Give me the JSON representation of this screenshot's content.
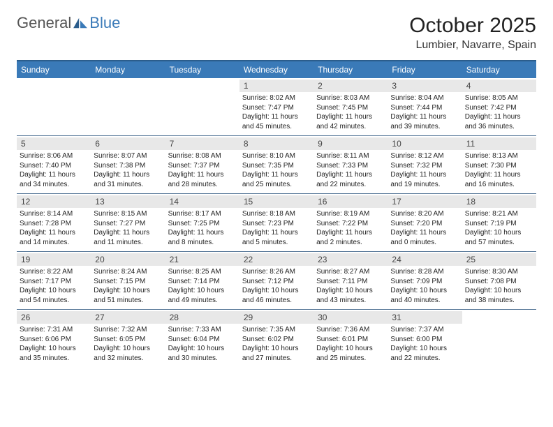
{
  "logo": {
    "text1": "General",
    "text2": "Blue"
  },
  "title": "October 2025",
  "location": "Lumbier, Navarre, Spain",
  "header_bg": "#3a7ab8",
  "border_color": "#2b5d8c",
  "daynum_bg": "#e8e8e8",
  "dow": [
    "Sunday",
    "Monday",
    "Tuesday",
    "Wednesday",
    "Thursday",
    "Friday",
    "Saturday"
  ],
  "weeks": [
    [
      {
        "n": "",
        "sr": "",
        "ss": "",
        "d1": "",
        "d2": ""
      },
      {
        "n": "",
        "sr": "",
        "ss": "",
        "d1": "",
        "d2": ""
      },
      {
        "n": "",
        "sr": "",
        "ss": "",
        "d1": "",
        "d2": ""
      },
      {
        "n": "1",
        "sr": "Sunrise: 8:02 AM",
        "ss": "Sunset: 7:47 PM",
        "d1": "Daylight: 11 hours",
        "d2": "and 45 minutes."
      },
      {
        "n": "2",
        "sr": "Sunrise: 8:03 AM",
        "ss": "Sunset: 7:45 PM",
        "d1": "Daylight: 11 hours",
        "d2": "and 42 minutes."
      },
      {
        "n": "3",
        "sr": "Sunrise: 8:04 AM",
        "ss": "Sunset: 7:44 PM",
        "d1": "Daylight: 11 hours",
        "d2": "and 39 minutes."
      },
      {
        "n": "4",
        "sr": "Sunrise: 8:05 AM",
        "ss": "Sunset: 7:42 PM",
        "d1": "Daylight: 11 hours",
        "d2": "and 36 minutes."
      }
    ],
    [
      {
        "n": "5",
        "sr": "Sunrise: 8:06 AM",
        "ss": "Sunset: 7:40 PM",
        "d1": "Daylight: 11 hours",
        "d2": "and 34 minutes."
      },
      {
        "n": "6",
        "sr": "Sunrise: 8:07 AM",
        "ss": "Sunset: 7:38 PM",
        "d1": "Daylight: 11 hours",
        "d2": "and 31 minutes."
      },
      {
        "n": "7",
        "sr": "Sunrise: 8:08 AM",
        "ss": "Sunset: 7:37 PM",
        "d1": "Daylight: 11 hours",
        "d2": "and 28 minutes."
      },
      {
        "n": "8",
        "sr": "Sunrise: 8:10 AM",
        "ss": "Sunset: 7:35 PM",
        "d1": "Daylight: 11 hours",
        "d2": "and 25 minutes."
      },
      {
        "n": "9",
        "sr": "Sunrise: 8:11 AM",
        "ss": "Sunset: 7:33 PM",
        "d1": "Daylight: 11 hours",
        "d2": "and 22 minutes."
      },
      {
        "n": "10",
        "sr": "Sunrise: 8:12 AM",
        "ss": "Sunset: 7:32 PM",
        "d1": "Daylight: 11 hours",
        "d2": "and 19 minutes."
      },
      {
        "n": "11",
        "sr": "Sunrise: 8:13 AM",
        "ss": "Sunset: 7:30 PM",
        "d1": "Daylight: 11 hours",
        "d2": "and 16 minutes."
      }
    ],
    [
      {
        "n": "12",
        "sr": "Sunrise: 8:14 AM",
        "ss": "Sunset: 7:28 PM",
        "d1": "Daylight: 11 hours",
        "d2": "and 14 minutes."
      },
      {
        "n": "13",
        "sr": "Sunrise: 8:15 AM",
        "ss": "Sunset: 7:27 PM",
        "d1": "Daylight: 11 hours",
        "d2": "and 11 minutes."
      },
      {
        "n": "14",
        "sr": "Sunrise: 8:17 AM",
        "ss": "Sunset: 7:25 PM",
        "d1": "Daylight: 11 hours",
        "d2": "and 8 minutes."
      },
      {
        "n": "15",
        "sr": "Sunrise: 8:18 AM",
        "ss": "Sunset: 7:23 PM",
        "d1": "Daylight: 11 hours",
        "d2": "and 5 minutes."
      },
      {
        "n": "16",
        "sr": "Sunrise: 8:19 AM",
        "ss": "Sunset: 7:22 PM",
        "d1": "Daylight: 11 hours",
        "d2": "and 2 minutes."
      },
      {
        "n": "17",
        "sr": "Sunrise: 8:20 AM",
        "ss": "Sunset: 7:20 PM",
        "d1": "Daylight: 11 hours",
        "d2": "and 0 minutes."
      },
      {
        "n": "18",
        "sr": "Sunrise: 8:21 AM",
        "ss": "Sunset: 7:19 PM",
        "d1": "Daylight: 10 hours",
        "d2": "and 57 minutes."
      }
    ],
    [
      {
        "n": "19",
        "sr": "Sunrise: 8:22 AM",
        "ss": "Sunset: 7:17 PM",
        "d1": "Daylight: 10 hours",
        "d2": "and 54 minutes."
      },
      {
        "n": "20",
        "sr": "Sunrise: 8:24 AM",
        "ss": "Sunset: 7:15 PM",
        "d1": "Daylight: 10 hours",
        "d2": "and 51 minutes."
      },
      {
        "n": "21",
        "sr": "Sunrise: 8:25 AM",
        "ss": "Sunset: 7:14 PM",
        "d1": "Daylight: 10 hours",
        "d2": "and 49 minutes."
      },
      {
        "n": "22",
        "sr": "Sunrise: 8:26 AM",
        "ss": "Sunset: 7:12 PM",
        "d1": "Daylight: 10 hours",
        "d2": "and 46 minutes."
      },
      {
        "n": "23",
        "sr": "Sunrise: 8:27 AM",
        "ss": "Sunset: 7:11 PM",
        "d1": "Daylight: 10 hours",
        "d2": "and 43 minutes."
      },
      {
        "n": "24",
        "sr": "Sunrise: 8:28 AM",
        "ss": "Sunset: 7:09 PM",
        "d1": "Daylight: 10 hours",
        "d2": "and 40 minutes."
      },
      {
        "n": "25",
        "sr": "Sunrise: 8:30 AM",
        "ss": "Sunset: 7:08 PM",
        "d1": "Daylight: 10 hours",
        "d2": "and 38 minutes."
      }
    ],
    [
      {
        "n": "26",
        "sr": "Sunrise: 7:31 AM",
        "ss": "Sunset: 6:06 PM",
        "d1": "Daylight: 10 hours",
        "d2": "and 35 minutes."
      },
      {
        "n": "27",
        "sr": "Sunrise: 7:32 AM",
        "ss": "Sunset: 6:05 PM",
        "d1": "Daylight: 10 hours",
        "d2": "and 32 minutes."
      },
      {
        "n": "28",
        "sr": "Sunrise: 7:33 AM",
        "ss": "Sunset: 6:04 PM",
        "d1": "Daylight: 10 hours",
        "d2": "and 30 minutes."
      },
      {
        "n": "29",
        "sr": "Sunrise: 7:35 AM",
        "ss": "Sunset: 6:02 PM",
        "d1": "Daylight: 10 hours",
        "d2": "and 27 minutes."
      },
      {
        "n": "30",
        "sr": "Sunrise: 7:36 AM",
        "ss": "Sunset: 6:01 PM",
        "d1": "Daylight: 10 hours",
        "d2": "and 25 minutes."
      },
      {
        "n": "31",
        "sr": "Sunrise: 7:37 AM",
        "ss": "Sunset: 6:00 PM",
        "d1": "Daylight: 10 hours",
        "d2": "and 22 minutes."
      },
      {
        "n": "",
        "sr": "",
        "ss": "",
        "d1": "",
        "d2": ""
      }
    ]
  ]
}
